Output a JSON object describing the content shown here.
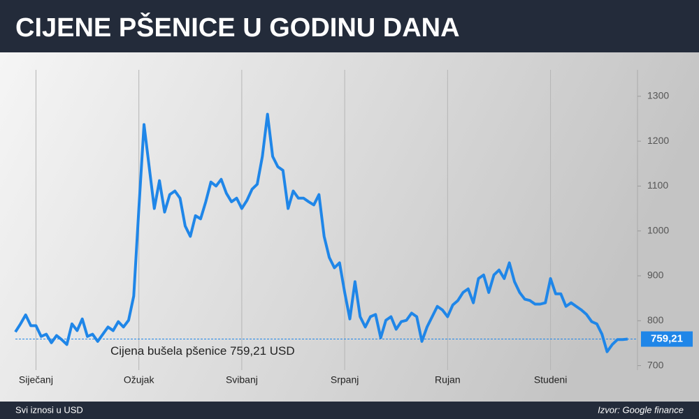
{
  "chart_data": {
    "type": "line",
    "title": "CIJENE PŠENICE U GODINU DANA",
    "categories": [
      null,
      null,
      null,
      null,
      "Siječanj",
      null,
      null,
      null,
      null,
      null,
      null,
      null,
      null,
      null,
      null,
      null,
      null,
      null,
      null,
      null,
      null,
      null,
      null,
      null,
      "Ožujak",
      null,
      null,
      null,
      null,
      null,
      null,
      null,
      null,
      null,
      null,
      null,
      null,
      null,
      null,
      null,
      null,
      null,
      null,
      null,
      "Svibanj",
      null,
      null,
      null,
      null,
      null,
      null,
      null,
      null,
      null,
      null,
      null,
      null,
      null,
      null,
      null,
      null,
      null,
      null,
      null,
      "Srpanj",
      null,
      null,
      null,
      null,
      null,
      null,
      null,
      null,
      null,
      null,
      null,
      null,
      null,
      null,
      null,
      null,
      null,
      null,
      null,
      "Rujan",
      null,
      null,
      null,
      null,
      null,
      null,
      null,
      null,
      null,
      null,
      null,
      null,
      null,
      null,
      null,
      null,
      null,
      null,
      null,
      "Studeni",
      null,
      null,
      null,
      null,
      null,
      null,
      null,
      null,
      null,
      null,
      null,
      null,
      null,
      null,
      null
    ],
    "values": [
      775,
      793,
      813,
      789,
      789,
      765,
      770,
      751,
      767,
      758,
      747,
      793,
      778,
      804,
      765,
      770,
      754,
      770,
      786,
      778,
      798,
      786,
      801,
      855,
      1050,
      1237,
      1143,
      1050,
      1112,
      1042,
      1081,
      1089,
      1073,
      1011,
      988,
      1034,
      1027,
      1065,
      1109,
      1100,
      1115,
      1084,
      1065,
      1073,
      1050,
      1068,
      1093,
      1104,
      1166,
      1260,
      1166,
      1143,
      1135,
      1050,
      1089,
      1073,
      1073,
      1065,
      1058,
      1081,
      988,
      941,
      918,
      929,
      863,
      804,
      887,
      809,
      786,
      809,
      814,
      762,
      801,
      809,
      781,
      798,
      801,
      817,
      809,
      754,
      786,
      809,
      832,
      824,
      809,
      835,
      845,
      863,
      871,
      840,
      894,
      902,
      863,
      902,
      913,
      894,
      929,
      887,
      863,
      848,
      845,
      837,
      837,
      840,
      894,
      860,
      860,
      832,
      840,
      832,
      824,
      814,
      798,
      793,
      770,
      731,
      747,
      758,
      758,
      759.21
    ],
    "color": "#1f86e8",
    "ylim": [
      690,
      1390
    ],
    "yticks": [
      700,
      800,
      900,
      1000,
      1100,
      1200,
      1300
    ],
    "grid": true,
    "reference": {
      "value": 759.21,
      "label": "759,21",
      "text": "Cijena bušela pšenice 759,21 USD"
    },
    "footer_left": "Svi iznosi u USD",
    "source": "Izvor: Google finance"
  }
}
